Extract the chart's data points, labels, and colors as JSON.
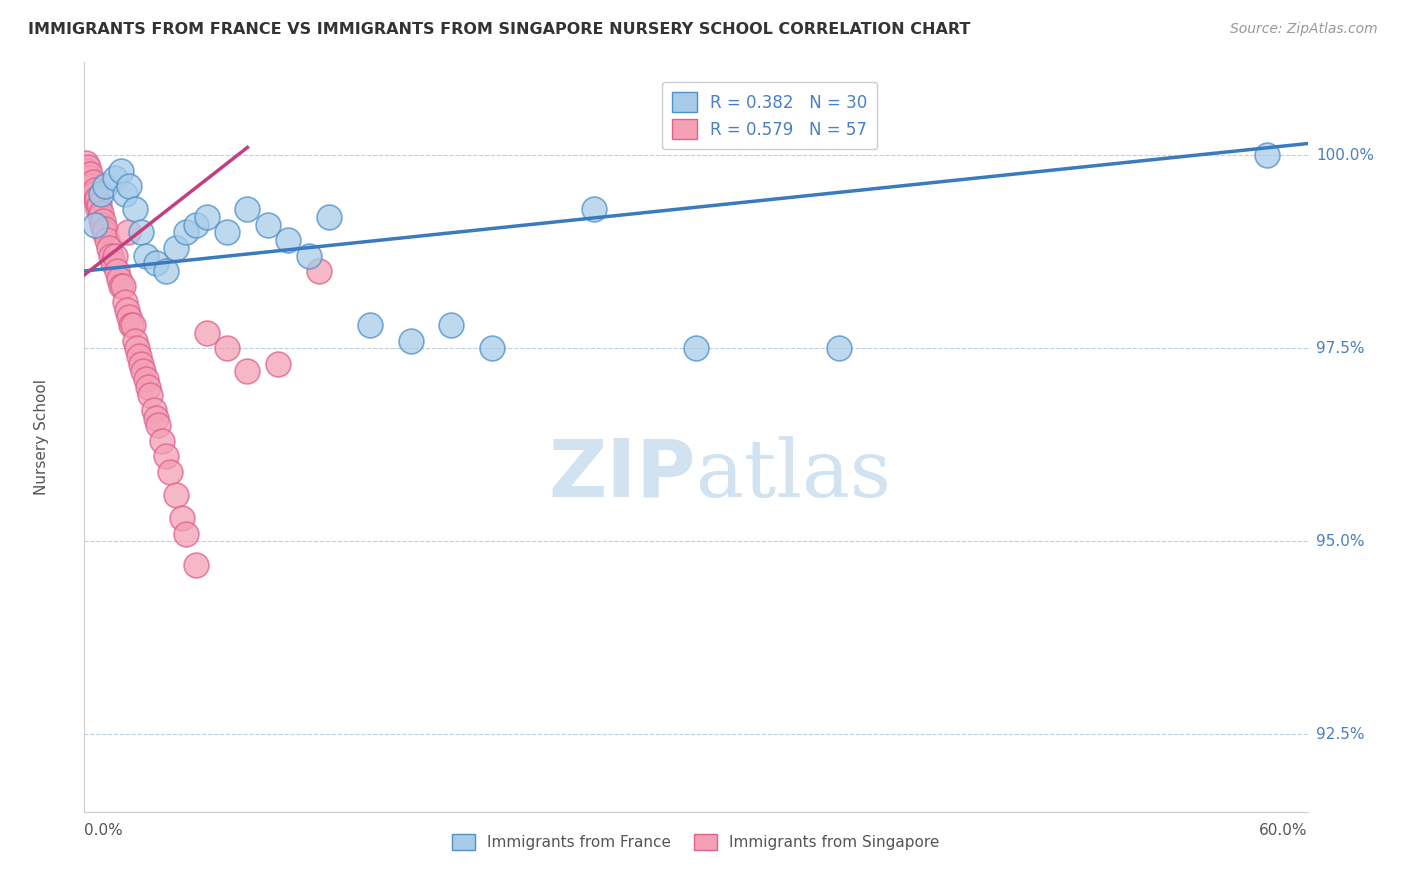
{
  "title": "IMMIGRANTS FROM FRANCE VS IMMIGRANTS FROM SINGAPORE NURSERY SCHOOL CORRELATION CHART",
  "source": "Source: ZipAtlas.com",
  "xlabel_bottom_left": "0.0%",
  "xlabel_bottom_right": "60.0%",
  "ylabel": "Nursery School",
  "ytick_labels": [
    "92.5%",
    "95.0%",
    "97.5%",
    "100.0%"
  ],
  "ytick_values": [
    92.5,
    95.0,
    97.5,
    100.0
  ],
  "xmin": 0.0,
  "xmax": 60.0,
  "ymin": 91.5,
  "ymax": 101.2,
  "legend_r_france": "R = 0.382",
  "legend_n_france": "N = 30",
  "legend_r_singapore": "R = 0.579",
  "legend_n_singapore": "N = 57",
  "color_france": "#a8cce8",
  "color_singapore": "#f4a0b5",
  "color_france_edge": "#5090c8",
  "color_singapore_edge": "#e06090",
  "color_france_line": "#3a7abf",
  "color_singapore_line": "#c04080",
  "color_text_blue": "#4a7fc0",
  "watermark_color": "#ccdff0",
  "france_line_x0": 0.0,
  "france_line_y0": 98.5,
  "france_line_x1": 60.0,
  "france_line_y1": 100.15,
  "singapore_line_x0": 0.0,
  "singapore_line_y0": 98.45,
  "singapore_line_x1": 8.0,
  "singapore_line_y1": 100.1,
  "france_scatter_x": [
    0.5,
    0.8,
    1.0,
    1.5,
    1.8,
    2.0,
    2.2,
    2.5,
    2.8,
    3.0,
    3.5,
    4.0,
    4.5,
    5.0,
    5.5,
    6.0,
    7.0,
    8.0,
    9.0,
    10.0,
    11.0,
    12.0,
    14.0,
    16.0,
    18.0,
    20.0,
    25.0,
    30.0,
    37.0,
    58.0
  ],
  "france_scatter_y": [
    99.1,
    99.5,
    99.6,
    99.7,
    99.8,
    99.5,
    99.6,
    99.3,
    99.0,
    98.7,
    98.6,
    98.5,
    98.8,
    99.0,
    99.1,
    99.2,
    99.0,
    99.3,
    99.1,
    98.9,
    98.7,
    99.2,
    97.8,
    97.6,
    97.8,
    97.5,
    99.3,
    97.5,
    97.5,
    100.0
  ],
  "singapore_scatter_x": [
    0.1,
    0.15,
    0.2,
    0.25,
    0.3,
    0.35,
    0.4,
    0.45,
    0.5,
    0.55,
    0.6,
    0.65,
    0.7,
    0.75,
    0.8,
    0.85,
    0.9,
    0.95,
    1.0,
    1.1,
    1.2,
    1.3,
    1.4,
    1.5,
    1.6,
    1.7,
    1.8,
    1.9,
    2.0,
    2.1,
    2.2,
    2.3,
    2.4,
    2.5,
    2.6,
    2.7,
    2.8,
    2.9,
    3.0,
    3.1,
    3.2,
    3.4,
    3.5,
    3.6,
    3.8,
    4.0,
    4.2,
    4.5,
    4.8,
    5.0,
    5.5,
    6.0,
    7.0,
    8.0,
    9.5,
    11.5,
    2.15
  ],
  "singapore_scatter_y": [
    99.9,
    99.8,
    99.85,
    99.7,
    99.75,
    99.6,
    99.65,
    99.5,
    99.55,
    99.4,
    99.45,
    99.3,
    99.35,
    99.2,
    99.25,
    99.1,
    99.15,
    99.0,
    99.05,
    98.9,
    98.8,
    98.7,
    98.6,
    98.7,
    98.5,
    98.4,
    98.3,
    98.3,
    98.1,
    98.0,
    97.9,
    97.8,
    97.8,
    97.6,
    97.5,
    97.4,
    97.3,
    97.2,
    97.1,
    97.0,
    96.9,
    96.7,
    96.6,
    96.5,
    96.3,
    96.1,
    95.9,
    95.6,
    95.3,
    95.1,
    94.7,
    97.7,
    97.5,
    97.2,
    97.3,
    98.5,
    99.0
  ]
}
